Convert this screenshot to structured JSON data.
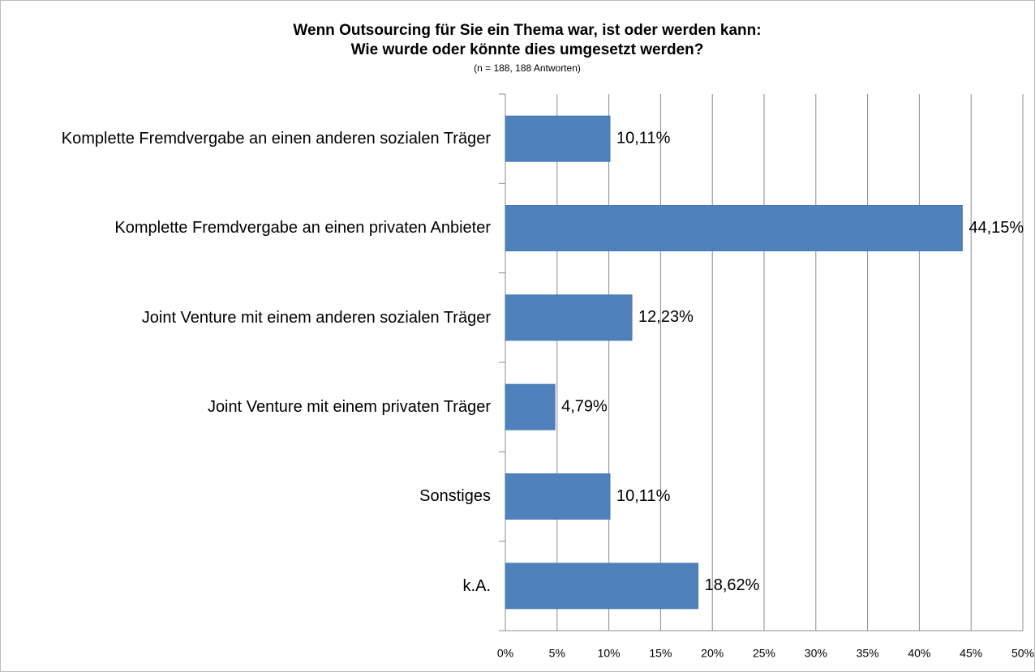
{
  "chart_data": {
    "type": "bar",
    "orientation": "horizontal",
    "title": "Wenn Outsourcing für Sie ein Thema war, ist oder werden kann:",
    "title_line2": "Wie wurde oder könnte dies umgesetzt werden?",
    "subtitle": "(n = 188,  188 Antworten)",
    "categories": [
      "Komplette Fremdvergabe an einen anderen sozialen Träger",
      "Komplette Fremdvergabe an einen privaten Anbieter",
      "Joint Venture mit einem anderen sozialen Träger",
      "Joint Venture mit einem privaten Träger",
      "Sonstiges",
      "k.A."
    ],
    "values": [
      10.11,
      44.15,
      12.23,
      4.79,
      10.11,
      18.62
    ],
    "value_labels": [
      "10,11%",
      "44,15%",
      "12,23%",
      "4,79%",
      "10,11%",
      "18,62%"
    ],
    "color": "#4f81bd",
    "xlim": [
      0,
      50
    ],
    "xticks": [
      {
        "value": 0,
        "label": "0%"
      },
      {
        "value": 5,
        "label": "5%"
      },
      {
        "value": 10,
        "label": "10%"
      },
      {
        "value": 15,
        "label": "15%"
      },
      {
        "value": 20,
        "label": "20%"
      },
      {
        "value": 25,
        "label": "25%"
      },
      {
        "value": 30,
        "label": "30%"
      },
      {
        "value": 35,
        "label": "35%"
      },
      {
        "value": 40,
        "label": "40%"
      },
      {
        "value": 45,
        "label": "45%"
      },
      {
        "value": 50,
        "label": "50%"
      }
    ],
    "grid": true
  }
}
